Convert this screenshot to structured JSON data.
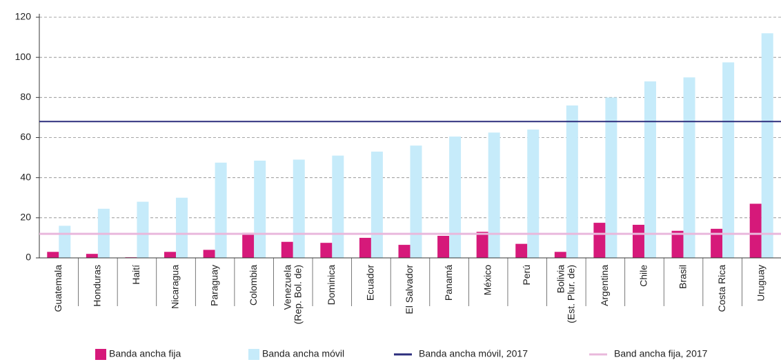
{
  "chart_data": {
    "type": "bar",
    "categories": [
      "Guatemala",
      "Honduras",
      "Haití",
      "Nicaragua",
      "Paraguay",
      "Colombia",
      "Venezuela\n(Rep. Bol. de)",
      "Dominica",
      "Ecuador",
      "El Salvador",
      "Panamá",
      "México",
      "Perú",
      "Bolivia\n(Est. Plur. de)",
      "Argentina",
      "Chile",
      "Brasil",
      "Costa Rica",
      "Uruguay"
    ],
    "series": [
      {
        "name": "Banda ancha fija",
        "color": "#d6197a",
        "values": [
          3,
          2,
          0.3,
          3,
          4,
          12.5,
          8,
          7.5,
          10,
          6.5,
          11,
          13,
          7,
          3,
          17.5,
          16.5,
          13.5,
          14.5,
          27
        ]
      },
      {
        "name": "Banda ancha móvil",
        "color": "#c6ebfa",
        "values": [
          16,
          24.5,
          28,
          30,
          47.5,
          48.5,
          49,
          51,
          53,
          56,
          60.5,
          62.5,
          64,
          76,
          80,
          88,
          90,
          97.5,
          112
        ]
      }
    ],
    "reference_lines": [
      {
        "name": "Banda ancha móvil, 2017",
        "color": "#2b2d7c",
        "value": 68
      },
      {
        "name": "Band ancha fija, 2017",
        "color": "#e9b8dc",
        "value": 12
      }
    ],
    "ylim": [
      0,
      120
    ],
    "yticks": [
      0,
      20,
      40,
      60,
      80,
      100,
      120
    ],
    "grid": true
  }
}
